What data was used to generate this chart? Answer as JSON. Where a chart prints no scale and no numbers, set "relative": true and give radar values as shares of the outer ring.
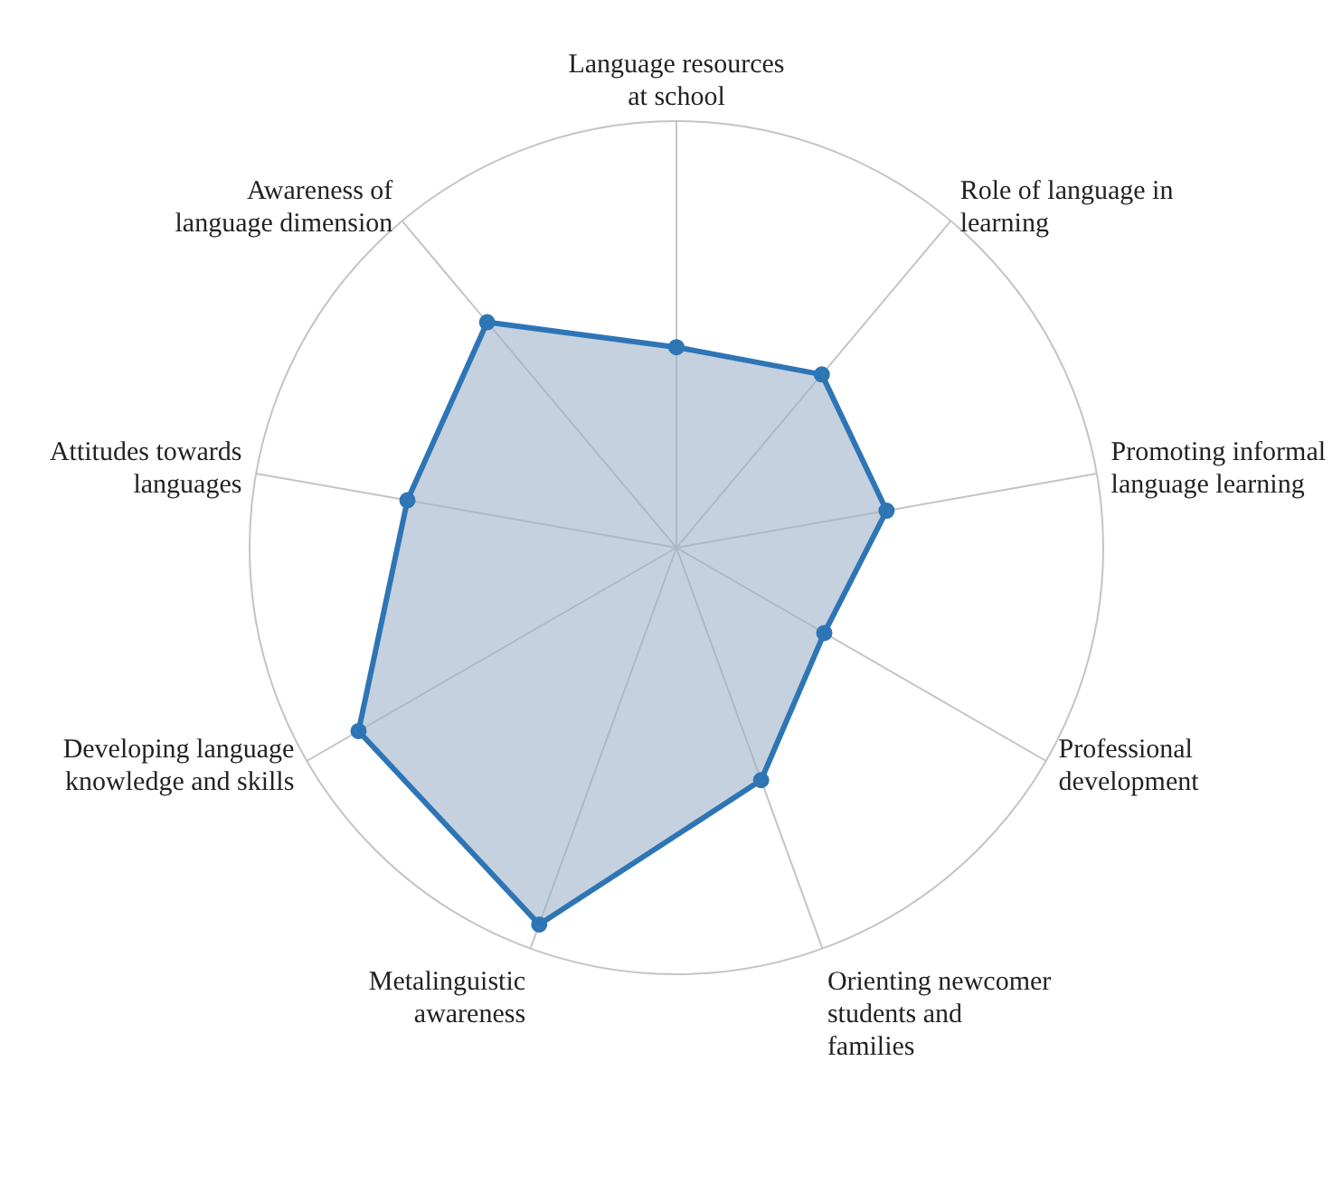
{
  "chart_data": {
    "type": "radar",
    "relative": true,
    "categories": [
      "Language resources at school",
      "Role of language in learning",
      "Promoting informal language learning",
      "Professional development",
      "Orienting newcomer students and families",
      "Metalinguistic awareness",
      "Developing language knowledge and skills",
      "Attitudes towards languages",
      "Awareness of language dimension"
    ],
    "series": [
      {
        "color": "#2e75b6",
        "values": [
          0.47,
          0.53,
          0.5,
          0.4,
          0.58,
          0.94,
          0.86,
          0.64,
          0.69
        ]
      }
    ],
    "marker": "circle",
    "grid": true,
    "legend": false
  }
}
